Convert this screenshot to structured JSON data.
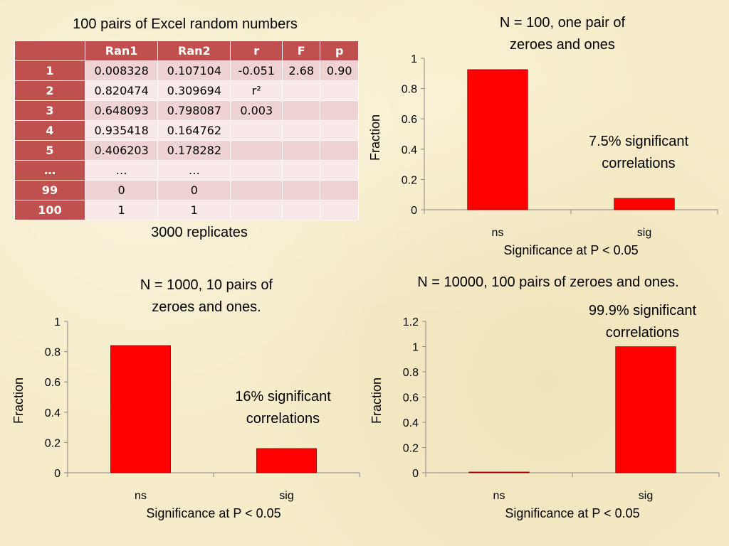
{
  "table": {
    "title": "100 pairs of Excel random numbers",
    "headers": [
      "",
      "Ran1",
      "Ran2",
      "r",
      "F",
      "p"
    ],
    "rows": [
      [
        "1",
        "0.008328",
        "0.107104",
        "-0.051",
        "2.68",
        "0.90"
      ],
      [
        "2",
        "0.820474",
        "0.309694",
        "r²",
        "",
        ""
      ],
      [
        "3",
        "0.648093",
        "0.798087",
        "0.003",
        "",
        ""
      ],
      [
        "4",
        "0.935418",
        "0.164762",
        "",
        "",
        ""
      ],
      [
        "5",
        "0.406203",
        "0.178282",
        "",
        "",
        ""
      ],
      [
        "…",
        "…",
        "…",
        "",
        "",
        ""
      ],
      [
        "99",
        "0",
        "0",
        "",
        "",
        ""
      ],
      [
        "100",
        "1",
        "1",
        "",
        "",
        ""
      ]
    ],
    "footer": "3000 replicates"
  },
  "colors": {
    "bar": "#ff0000",
    "table_header": "#c0504d",
    "background": "#f6ecc9"
  },
  "chart_data": [
    {
      "type": "bar",
      "title": "N = 100, one pair of zeroes and ones",
      "categories": [
        "ns",
        "sig"
      ],
      "values": [
        0.925,
        0.075
      ],
      "xlabel": "Significance at P < 0.05",
      "ylabel": "Fraction",
      "ylim": [
        0,
        1
      ],
      "yticks": [
        0,
        0.2,
        0.4,
        0.6,
        0.8,
        1
      ],
      "annotation": "7.5% significant correlations"
    },
    {
      "type": "bar",
      "title": "N = 1000, 10 pairs of zeroes and ones.",
      "categories": [
        "ns",
        "sig"
      ],
      "values": [
        0.84,
        0.16
      ],
      "xlabel": "Significance at P < 0.05",
      "ylabel": "Fraction",
      "ylim": [
        0,
        1
      ],
      "yticks": [
        0,
        0.2,
        0.4,
        0.6,
        0.8,
        1
      ],
      "annotation": "16% significant correlations"
    },
    {
      "type": "bar",
      "title": "N = 10000, 100 pairs of zeroes and ones.",
      "categories": [
        "ns",
        "sig"
      ],
      "values": [
        0.001,
        0.999
      ],
      "xlabel": "Significance at P < 0.05",
      "ylabel": "Fraction",
      "ylim": [
        0,
        1.2
      ],
      "yticks": [
        0,
        0.2,
        0.4,
        0.6,
        0.8,
        1,
        1.2
      ],
      "annotation": "99.9% significant correlations"
    }
  ]
}
